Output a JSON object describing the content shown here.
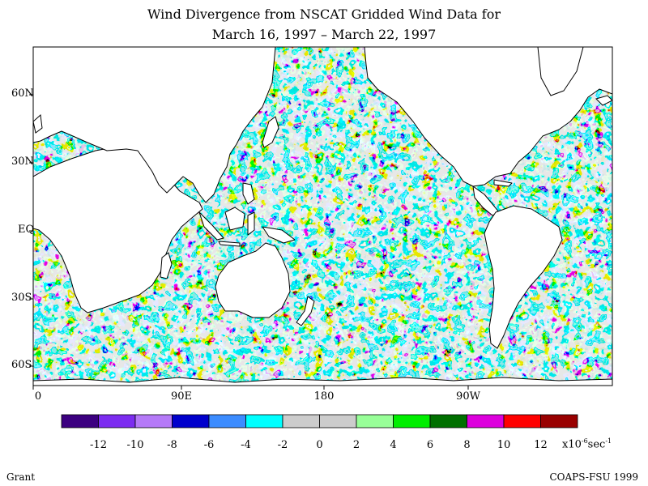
{
  "title_line1": "Wind Divergence from NSCAT Gridded Wind Data for",
  "title_line2": "March 16, 1997 – March 22, 1997",
  "lat_labels": [
    "60N",
    "30N",
    "EQ",
    "30S",
    "60S"
  ],
  "lon_labels": [
    "0",
    "90E",
    "180",
    "90W"
  ],
  "colorbar": {
    "colors": [
      "#3c0080",
      "#7c2cf0",
      "#b57af8",
      "#0000cc",
      "#3c8cff",
      "#00ffff",
      "#cccccc",
      "#cccccc",
      "#98ff98",
      "#00ee00",
      "#007000",
      "#dd00dd",
      "#ff0000",
      "#990000"
    ],
    "ticks": [
      "-12",
      "-10",
      "-8",
      "-6",
      "-4",
      "-2",
      "0",
      "2",
      "4",
      "6",
      "8",
      "10",
      "12"
    ],
    "units_base": "x10",
    "units_exp": "-6",
    "units_unit": "sec",
    "units_unit_exp": "-1"
  },
  "footer_left": "Grant",
  "footer_right": "COAPS-FSU 1999"
}
